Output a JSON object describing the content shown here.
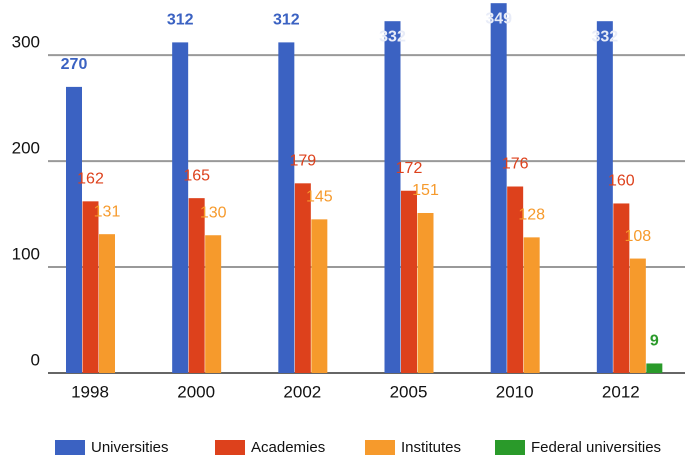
{
  "chart_data": {
    "type": "bar",
    "categories": [
      "1998",
      "2000",
      "2002",
      "2005",
      "2010",
      "2012"
    ],
    "series": [
      {
        "name": "Universities",
        "color": "#3b62c2",
        "values": [
          270,
          312,
          312,
          332,
          349,
          332
        ]
      },
      {
        "name": "Academies",
        "color": "#dd411c",
        "values": [
          162,
          165,
          179,
          172,
          176,
          160
        ]
      },
      {
        "name": "Institutes",
        "color": "#f69a2c",
        "values": [
          131,
          130,
          145,
          151,
          128,
          108
        ]
      },
      {
        "name": "Federal universities",
        "color": "#2a9a2a",
        "values": [
          null,
          null,
          null,
          null,
          null,
          9
        ]
      }
    ],
    "ylim": [
      0,
      352
    ],
    "yticks": [
      0,
      100,
      200,
      300
    ],
    "grid": true
  }
}
